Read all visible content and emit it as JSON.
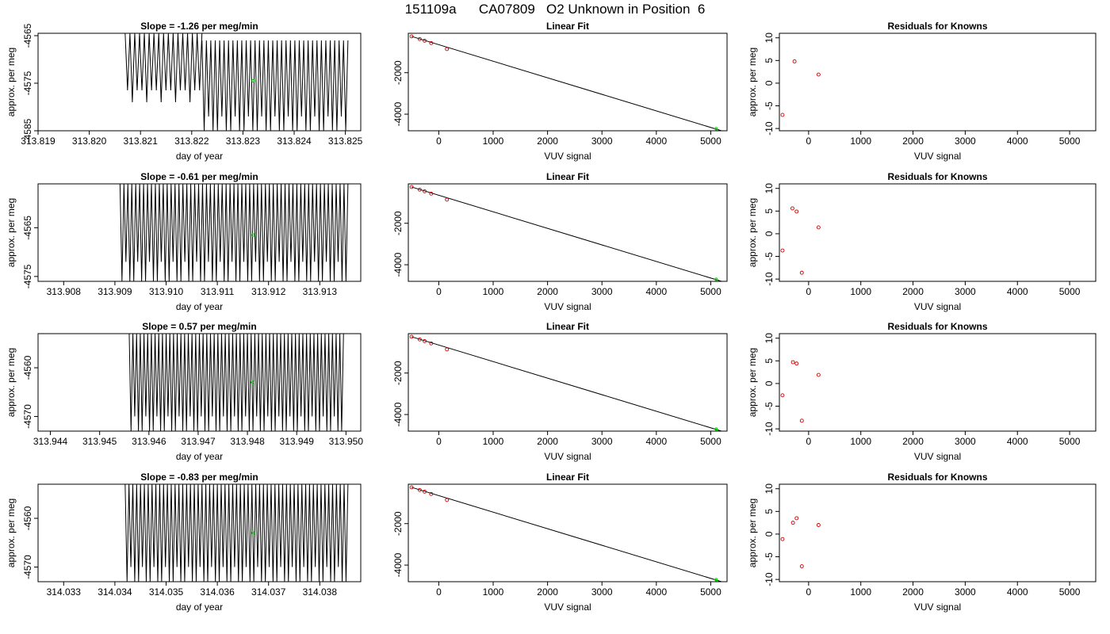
{
  "figure": {
    "title": "151109a      CA07809   O2 Unknown in Position  6"
  },
  "chart_data": [
    {
      "type": "line",
      "title": "Slope =  -1.26  per meg/min",
      "xlabel": "day of year",
      "ylabel": "approx. per meg",
      "xlim": [
        313.819,
        313.8253
      ],
      "ylim": [
        -4585,
        -4564.5
      ],
      "xticks": [
        "313.819",
        "313.820",
        "313.821",
        "313.822",
        "313.823",
        "313.824",
        "313.825"
      ],
      "yticks": [
        "-4585",
        "-4575",
        "-4565"
      ],
      "grid": false,
      "series": [
        {
          "segments": [
            {
              "x_start": 313.8207,
              "x_end": 313.8222,
              "y_high": -4564.5,
              "y_low": -4576.5,
              "y_low_alt": -4579.0,
              "cycles": 16
            },
            {
              "x_start": 313.8222,
              "x_end": 313.82505,
              "y_high": -4566.0,
              "y_low": -4585.0,
              "y_low_alt": -4582.0,
              "cycles": 33
            }
          ]
        }
      ],
      "highlight_point": {
        "x": 313.8232,
        "y": -4574.5,
        "color": "#00dd00"
      }
    },
    {
      "type": "scatter",
      "title": "Linear Fit",
      "xlabel": "VUV signal",
      "ylabel": "",
      "xlim": [
        -560,
        5300
      ],
      "ylim": [
        -4800,
        -100
      ],
      "xticks": [
        "0",
        "1000",
        "2000",
        "3000",
        "4000",
        "5000"
      ],
      "yticks": [
        "-4000",
        "-2000"
      ],
      "grid": false,
      "points": [
        {
          "x": -500,
          "y": -250
        },
        {
          "x": -350,
          "y": -380
        },
        {
          "x": -260,
          "y": -460
        },
        {
          "x": -140,
          "y": -570
        },
        {
          "x": 150,
          "y": -860
        }
      ],
      "fit_line": {
        "x": [
          -500,
          5300
        ],
        "y": [
          -250,
          -4880
        ]
      },
      "highlight_point": {
        "x": 5100,
        "y": -4700,
        "color": "#00dd00"
      },
      "point_color": "#cc0000"
    },
    {
      "type": "scatter",
      "title": "Residuals for Knowns",
      "xlabel": "VUV signal",
      "ylabel": "approx. per meg",
      "xlim": [
        -560,
        5500
      ],
      "ylim": [
        -10.5,
        11
      ],
      "xticks": [
        "0",
        "1000",
        "2000",
        "3000",
        "4000",
        "5000"
      ],
      "yticks": [
        "-10",
        "-5",
        "0",
        "5",
        "10"
      ],
      "grid": false,
      "points": [
        {
          "x": -500,
          "y": -7.0
        },
        {
          "x": -270,
          "y": 4.8
        },
        {
          "x": 190,
          "y": 1.9
        }
      ],
      "point_color": "#cc0000"
    },
    {
      "type": "line",
      "title": "Slope =  -0.61  per meg/min",
      "xlabel": "day of year",
      "ylabel": "approx. per meg",
      "xlim": [
        313.9075,
        313.9138
      ],
      "ylim": [
        -4576,
        -4556
      ],
      "xticks": [
        "313.908",
        "313.909",
        "313.910",
        "313.911",
        "313.912",
        "313.913"
      ],
      "yticks": [
        "-4575",
        "-4565"
      ],
      "grid": false,
      "series": [
        {
          "segments": [
            {
              "x_start": 313.9091,
              "x_end": 313.91355,
              "y_high": -4556.0,
              "y_low": -4576.0,
              "y_low_alt": -4572.0,
              "cycles": 58
            }
          ]
        }
      ],
      "highlight_point": {
        "x": 313.9117,
        "y": -4566.5,
        "color": "#00dd00"
      }
    },
    {
      "type": "scatter",
      "title": "Linear Fit",
      "xlabel": "VUV signal",
      "ylabel": "",
      "xlim": [
        -560,
        5300
      ],
      "ylim": [
        -4800,
        -100
      ],
      "xticks": [
        "0",
        "1000",
        "2000",
        "3000",
        "4000",
        "5000"
      ],
      "yticks": [
        "-4000",
        "-2000"
      ],
      "grid": false,
      "points": [
        {
          "x": -500,
          "y": -250
        },
        {
          "x": -350,
          "y": -380
        },
        {
          "x": -260,
          "y": -460
        },
        {
          "x": -140,
          "y": -570
        },
        {
          "x": 150,
          "y": -860
        }
      ],
      "fit_line": {
        "x": [
          -500,
          5300
        ],
        "y": [
          -250,
          -4880
        ]
      },
      "highlight_point": {
        "x": 5100,
        "y": -4700,
        "color": "#00dd00"
      },
      "point_color": "#cc0000"
    },
    {
      "type": "scatter",
      "title": "Residuals for Knowns",
      "xlabel": "VUV signal",
      "ylabel": "approx. per meg",
      "xlim": [
        -560,
        5500
      ],
      "ylim": [
        -10.5,
        11
      ],
      "xticks": [
        "0",
        "1000",
        "2000",
        "3000",
        "4000",
        "5000"
      ],
      "yticks": [
        "-10",
        "-5",
        "0",
        "5",
        "10"
      ],
      "grid": false,
      "points": [
        {
          "x": -500,
          "y": -3.7
        },
        {
          "x": -310,
          "y": 5.6
        },
        {
          "x": -230,
          "y": 4.9
        },
        {
          "x": -130,
          "y": -8.6
        },
        {
          "x": 190,
          "y": 1.4
        }
      ],
      "point_color": "#cc0000"
    },
    {
      "type": "line",
      "title": "Slope =  0.57  per meg/min",
      "xlabel": "day of year",
      "ylabel": "approx. per meg",
      "xlim": [
        313.94375,
        313.9503
      ],
      "ylim": [
        -4573,
        -4553
      ],
      "xticks": [
        "313.944",
        "313.945",
        "313.946",
        "313.947",
        "313.948",
        "313.949",
        "313.950"
      ],
      "yticks": [
        "-4570",
        "-4560"
      ],
      "grid": false,
      "series": [
        {
          "segments": [
            {
              "x_start": 313.9456,
              "x_end": 313.94995,
              "y_high": -4553.0,
              "y_low": -4573.0,
              "y_low_alt": -4570.0,
              "cycles": 58
            }
          ]
        }
      ],
      "highlight_point": {
        "x": 313.9481,
        "y": -4563.0,
        "color": "#00dd00"
      }
    },
    {
      "type": "scatter",
      "title": "Linear Fit",
      "xlabel": "VUV signal",
      "ylabel": "",
      "xlim": [
        -560,
        5300
      ],
      "ylim": [
        -4800,
        -100
      ],
      "xticks": [
        "0",
        "1000",
        "2000",
        "3000",
        "4000",
        "5000"
      ],
      "yticks": [
        "-4000",
        "-2000"
      ],
      "grid": false,
      "points": [
        {
          "x": -500,
          "y": -250
        },
        {
          "x": -350,
          "y": -380
        },
        {
          "x": -260,
          "y": -460
        },
        {
          "x": -140,
          "y": -570
        },
        {
          "x": 150,
          "y": -860
        }
      ],
      "fit_line": {
        "x": [
          -500,
          5300
        ],
        "y": [
          -250,
          -4880
        ]
      },
      "highlight_point": {
        "x": 5100,
        "y": -4700,
        "color": "#00dd00"
      },
      "point_color": "#cc0000"
    },
    {
      "type": "scatter",
      "title": "Residuals for Knowns",
      "xlabel": "VUV signal",
      "ylabel": "approx. per meg",
      "xlim": [
        -560,
        5500
      ],
      "ylim": [
        -10.5,
        11
      ],
      "xticks": [
        "0",
        "1000",
        "2000",
        "3000",
        "4000",
        "5000"
      ],
      "yticks": [
        "-10",
        "-5",
        "0",
        "5",
        "10"
      ],
      "grid": false,
      "points": [
        {
          "x": -500,
          "y": -2.6
        },
        {
          "x": -300,
          "y": 4.7
        },
        {
          "x": -230,
          "y": 4.4
        },
        {
          "x": -130,
          "y": -8.2
        },
        {
          "x": 190,
          "y": 1.9
        }
      ],
      "point_color": "#cc0000"
    },
    {
      "type": "line",
      "title": "Slope =  -0.83  per meg/min",
      "xlabel": "day of year",
      "ylabel": "approx. per meg",
      "xlim": [
        314.0325,
        314.0388
      ],
      "ylim": [
        -4573,
        -4553
      ],
      "xticks": [
        "314.033",
        "314.034",
        "314.035",
        "314.036",
        "314.037",
        "314.038"
      ],
      "yticks": [
        "-4570",
        "-4560"
      ],
      "grid": false,
      "series": [
        {
          "segments": [
            {
              "x_start": 314.0342,
              "x_end": 314.03855,
              "y_high": -4553.0,
              "y_low": -4573.0,
              "y_low_alt": -4570.0,
              "cycles": 58
            }
          ]
        }
      ],
      "highlight_point": {
        "x": 314.0367,
        "y": -4563.0,
        "color": "#00dd00"
      }
    },
    {
      "type": "scatter",
      "title": "Linear Fit",
      "xlabel": "VUV signal",
      "ylabel": "",
      "xlim": [
        -560,
        5300
      ],
      "ylim": [
        -4800,
        -100
      ],
      "xticks": [
        "0",
        "1000",
        "2000",
        "3000",
        "4000",
        "5000"
      ],
      "yticks": [
        "-4000",
        "-2000"
      ],
      "grid": false,
      "points": [
        {
          "x": -500,
          "y": -250
        },
        {
          "x": -350,
          "y": -380
        },
        {
          "x": -260,
          "y": -460
        },
        {
          "x": -140,
          "y": -570
        },
        {
          "x": 150,
          "y": -860
        }
      ],
      "fit_line": {
        "x": [
          -500,
          5300
        ],
        "y": [
          -250,
          -4880
        ]
      },
      "highlight_point": {
        "x": 5100,
        "y": -4700,
        "color": "#00dd00"
      },
      "point_color": "#cc0000"
    },
    {
      "type": "scatter",
      "title": "Residuals for Knowns",
      "xlabel": "VUV signal",
      "ylabel": "approx. per meg",
      "xlim": [
        -560,
        5500
      ],
      "ylim": [
        -10.5,
        11
      ],
      "xticks": [
        "0",
        "1000",
        "2000",
        "3000",
        "4000",
        "5000"
      ],
      "yticks": [
        "-10",
        "-5",
        "0",
        "5",
        "10"
      ],
      "grid": false,
      "points": [
        {
          "x": -500,
          "y": -1.1
        },
        {
          "x": -300,
          "y": 2.5
        },
        {
          "x": -230,
          "y": 3.5
        },
        {
          "x": -130,
          "y": -7.1
        },
        {
          "x": 190,
          "y": 2.0
        }
      ],
      "point_color": "#cc0000"
    }
  ]
}
